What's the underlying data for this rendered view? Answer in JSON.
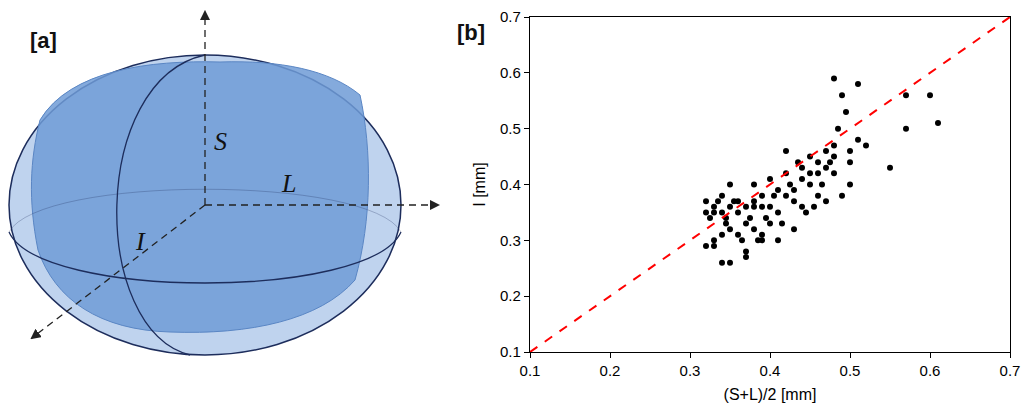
{
  "diagram": {
    "label": "[a]",
    "axes": {
      "vertical": "S",
      "horizontal": "L",
      "depth": "I"
    }
  },
  "chart_data": {
    "type": "scatter",
    "panel_label": "[b]",
    "x_label": "(S+L)/2 [mm]",
    "y_label": "I [mm]",
    "xlim": [
      0.1,
      0.7
    ],
    "ylim": [
      0.1,
      0.7
    ],
    "xticks": [
      0.1,
      0.2,
      0.3,
      0.4,
      0.5,
      0.6,
      0.7
    ],
    "yticks": [
      0.1,
      0.2,
      0.3,
      0.4,
      0.5,
      0.6,
      0.7
    ],
    "grid": false,
    "series": [
      {
        "type": "scatter",
        "color": "#000000",
        "marker": "circle",
        "x": [
          0.32,
          0.32,
          0.325,
          0.33,
          0.33,
          0.33,
          0.335,
          0.34,
          0.34,
          0.34,
          0.345,
          0.345,
          0.35,
          0.35,
          0.35,
          0.355,
          0.36,
          0.36,
          0.365,
          0.37,
          0.37,
          0.37,
          0.375,
          0.38,
          0.38,
          0.38,
          0.385,
          0.39,
          0.39,
          0.39,
          0.395,
          0.4,
          0.4,
          0.4,
          0.405,
          0.41,
          0.41,
          0.415,
          0.42,
          0.42,
          0.42,
          0.425,
          0.43,
          0.43,
          0.435,
          0.44,
          0.44,
          0.445,
          0.45,
          0.45,
          0.45,
          0.455,
          0.46,
          0.46,
          0.465,
          0.47,
          0.47,
          0.475,
          0.48,
          0.48,
          0.48,
          0.485,
          0.49,
          0.49,
          0.495,
          0.5,
          0.5,
          0.51,
          0.51,
          0.52,
          0.55,
          0.57,
          0.57,
          0.6,
          0.61,
          0.36,
          0.34,
          0.32,
          0.38,
          0.43,
          0.44,
          0.46,
          0.47,
          0.41,
          0.39,
          0.37,
          0.35,
          0.33,
          0.48,
          0.5
        ],
        "values": [
          0.37,
          0.35,
          0.34,
          0.36,
          0.3,
          0.29,
          0.37,
          0.35,
          0.38,
          0.26,
          0.34,
          0.33,
          0.36,
          0.4,
          0.26,
          0.37,
          0.37,
          0.31,
          0.3,
          0.28,
          0.27,
          0.33,
          0.34,
          0.32,
          0.36,
          0.4,
          0.3,
          0.31,
          0.38,
          0.3,
          0.34,
          0.36,
          0.33,
          0.41,
          0.38,
          0.35,
          0.3,
          0.33,
          0.38,
          0.42,
          0.46,
          0.4,
          0.32,
          0.37,
          0.44,
          0.41,
          0.36,
          0.35,
          0.4,
          0.42,
          0.45,
          0.36,
          0.42,
          0.38,
          0.4,
          0.43,
          0.37,
          0.44,
          0.47,
          0.59,
          0.42,
          0.5,
          0.38,
          0.56,
          0.53,
          0.44,
          0.4,
          0.58,
          0.48,
          0.47,
          0.43,
          0.56,
          0.5,
          0.56,
          0.51,
          0.35,
          0.31,
          0.29,
          0.37,
          0.39,
          0.43,
          0.44,
          0.46,
          0.39,
          0.36,
          0.36,
          0.32,
          0.35,
          0.45,
          0.46
        ]
      },
      {
        "type": "line",
        "color": "#ff0000",
        "line_style": "dashed",
        "x": [
          0.1,
          0.7
        ],
        "values": [
          0.1,
          0.7
        ]
      }
    ]
  }
}
